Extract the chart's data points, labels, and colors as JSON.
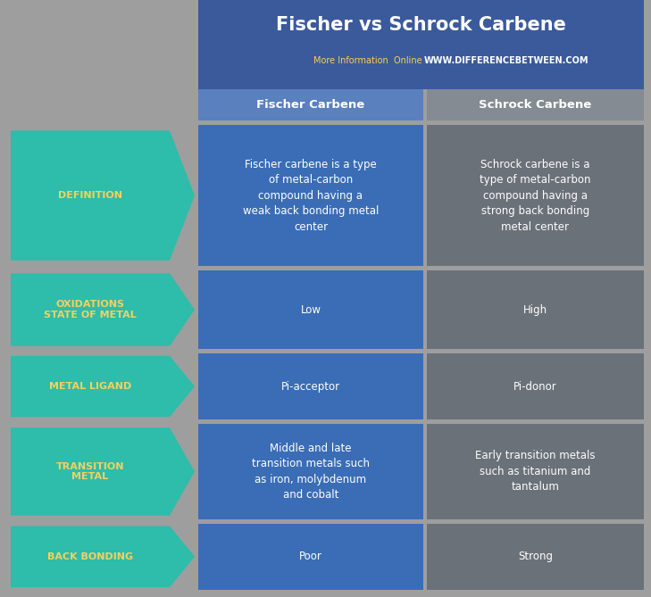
{
  "title": "Fischer vs Schrock Carbene",
  "subtitle_left": "More Information  Online",
  "subtitle_right": "WWW.DIFFERENCEBETWEEN.COM",
  "col1_header": "Fischer Carbene",
  "col2_header": "Schrock Carbene",
  "bg_color": "#9e9e9e",
  "header_bg_color": "#3a5a9c",
  "col1_header_bg": "#5b80be",
  "col2_header_bg": "#858b92",
  "col1_bg_color": "#3a6db5",
  "col2_bg_color": "#6b7178",
  "arrow_color": "#2dbdaa",
  "arrow_label_color": "#f5d060",
  "title_color": "#ffffff",
  "subtitle_left_color": "#f5d060",
  "subtitle_right_color": "#ffffff",
  "header_text_color": "#ffffff",
  "col1_text_color": "#ffffff",
  "col2_text_color": "#ffffff",
  "rows": [
    {
      "label": "DEFINITION",
      "col1": "Fischer carbene is a type\nof metal-carbon\ncompound having a\nweak back bonding metal\ncenter",
      "col2": "Schrock carbene is a\ntype of metal-carbon\ncompound having a\nstrong back bonding\nmetal center"
    },
    {
      "label": "OXIDATIONS\nSTATE OF METAL",
      "col1": "Low",
      "col2": "High"
    },
    {
      "label": "METAL LIGAND",
      "col1": "Pi-acceptor",
      "col2": "Pi-donor"
    },
    {
      "label": "TRANSITION\nMETAL",
      "col1": "Middle and late\ntransition metals such\nas iron, molybdenum\nand cobalt",
      "col2": "Early transition metals\nsuch as titanium and\ntantalum"
    },
    {
      "label": "BACK BONDING",
      "col1": "Poor",
      "col2": "Strong"
    }
  ]
}
